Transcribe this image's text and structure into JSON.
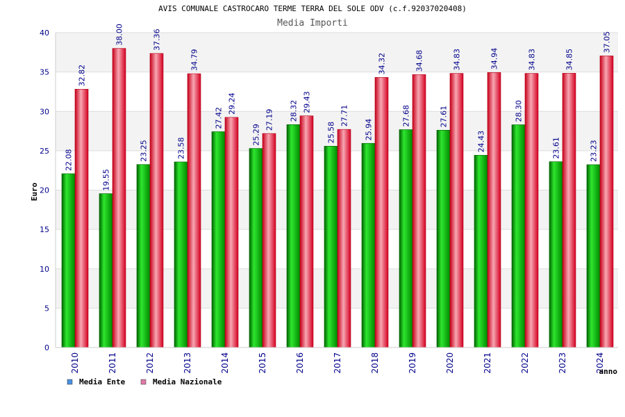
{
  "chart_data": {
    "type": "bar",
    "title": "AVIS COMUNALE CASTROCARO TERME TERRA DEL SOLE ODV (c.f.92037020408)",
    "subtitle": "Media Importi",
    "xlabel": "anno",
    "ylabel": "Euro",
    "ylim": [
      0,
      40
    ],
    "yticks": [
      "0",
      "5",
      "10",
      "15",
      "20",
      "25",
      "30",
      "35",
      "40"
    ],
    "categories": [
      "2010",
      "2011",
      "2012",
      "2013",
      "2014",
      "2015",
      "2016",
      "2017",
      "2018",
      "2019",
      "2020",
      "2021",
      "2022",
      "2023",
      "2024"
    ],
    "series": [
      {
        "name": "Media Ente",
        "color": "#00b000",
        "values": [
          22.08,
          19.55,
          23.25,
          23.58,
          27.42,
          25.29,
          28.32,
          25.58,
          25.94,
          27.68,
          27.61,
          24.43,
          28.3,
          23.61,
          23.23
        ],
        "labels": [
          "22.08",
          "19.55",
          "23.25",
          "23.58",
          "27.42",
          "25.29",
          "28.32",
          "25.58",
          "25.94",
          "27.68",
          "27.61",
          "24.43",
          "28.30",
          "23.61",
          "23.23"
        ]
      },
      {
        "name": "Media Nazionale",
        "color": "#e8132a",
        "values": [
          32.82,
          38.0,
          37.36,
          34.79,
          29.24,
          27.19,
          29.43,
          27.71,
          34.32,
          34.68,
          34.83,
          34.94,
          34.83,
          34.85,
          37.05
        ],
        "labels": [
          "32.82",
          "38.00",
          "37.36",
          "34.79",
          "29.24",
          "27.19",
          "29.43",
          "27.71",
          "34.32",
          "34.68",
          "34.83",
          "34.94",
          "34.83",
          "34.85",
          "37.05"
        ]
      }
    ],
    "legend": {
      "placement": "bottom-left",
      "items": [
        {
          "label": "Media Ente",
          "color": "#4a90e2"
        },
        {
          "label": "Media Nazionale",
          "color": "#e07aa8"
        }
      ]
    },
    "grid": true,
    "band_colors": [
      "#f3f3f3",
      "#ffffff"
    ]
  }
}
